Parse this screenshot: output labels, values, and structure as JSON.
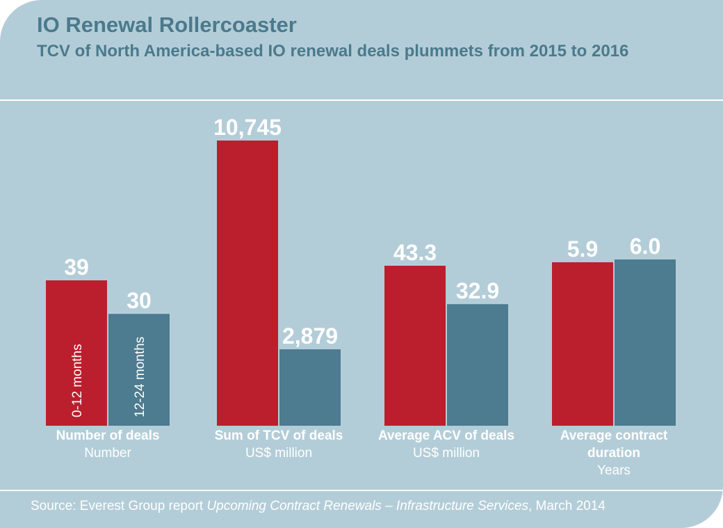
{
  "chart_data": {
    "type": "bar",
    "title": "IO Renewal Rollercoaster",
    "subtitle": "TCV of North America-based IO renewal deals plummets from 2015 to 2016",
    "groups": [
      {
        "label": "Number of deals",
        "unit": "Number",
        "values": [
          39,
          30
        ],
        "value_labels": [
          "39",
          "30"
        ]
      },
      {
        "label": "Sum of TCV of deals",
        "unit": "US$ million",
        "values": [
          10745,
          2879
        ],
        "value_labels": [
          "10,745",
          "2,879"
        ]
      },
      {
        "label": "Average ACV of deals",
        "unit": "US$ million",
        "values": [
          43.3,
          32.9
        ],
        "value_labels": [
          "43.3",
          "32.9"
        ]
      },
      {
        "label": "Average contract duration",
        "label_lines": [
          "Average contract",
          "duration"
        ],
        "unit": "Years",
        "values": [
          5.9,
          6.0
        ],
        "value_labels": [
          "5.9",
          "6.0"
        ]
      }
    ],
    "series": [
      {
        "name": "0-12 months",
        "color": "#bb1f2e"
      },
      {
        "name": "12-24 months",
        "color": "#4d7b8f"
      }
    ],
    "legend": "inside first group bars, rotated",
    "grid": false,
    "independent_scale_per_group": true
  },
  "source": {
    "prefix": "Source: Everest Group report ",
    "italic": "Upcoming Contract Renewals – Infrastructure Services",
    "suffix": ", March 2014"
  }
}
